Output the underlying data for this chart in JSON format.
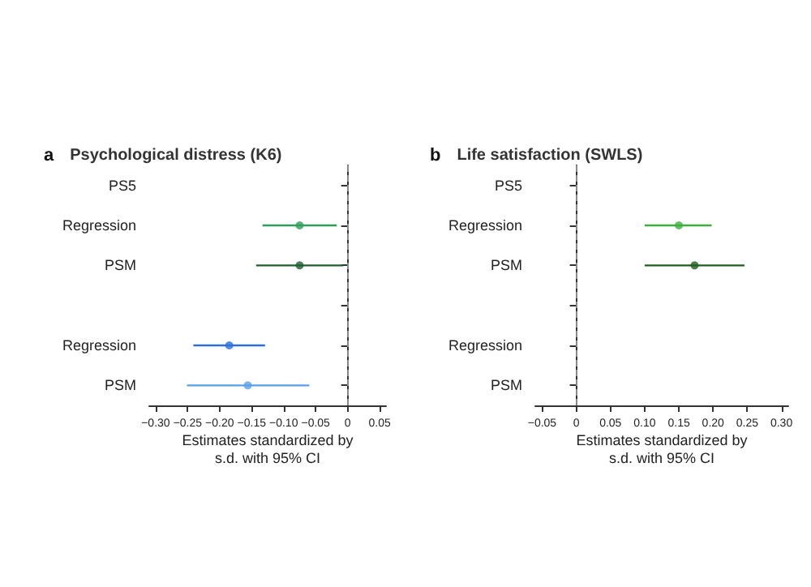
{
  "chart_data": [
    {
      "type": "scatter",
      "orientation": "horizontal",
      "title": "Psychological distress (K6)",
      "annotations": [
        "a"
      ],
      "xlabel": "Estimates standardized by\ns.d. with 95% CI",
      "categories": [
        "PS5",
        "Regression",
        "PSM",
        null,
        "Regression",
        "PSM"
      ],
      "values": [
        null,
        -0.075,
        -0.075,
        null,
        -0.185,
        -0.156
      ],
      "errors": [
        null,
        [
          -0.133,
          -0.017
        ],
        [
          -0.143,
          -0.007
        ],
        null,
        [
          -0.241,
          -0.129
        ],
        [
          -0.251,
          -0.06
        ]
      ],
      "colors": [
        null,
        "#2e9e5b",
        "#1f5f2f",
        null,
        "#2a6fdb",
        "#5aa0e8"
      ],
      "xlim": [
        -0.31,
        0.06
      ],
      "xticks": [
        {
          "value": -0.3,
          "label": "−0.30"
        },
        {
          "value": -0.25,
          "label": "−0.25"
        },
        {
          "value": -0.2,
          "label": "−0.20"
        },
        {
          "value": -0.15,
          "label": "−0.15"
        },
        {
          "value": -0.1,
          "label": "−0.10"
        },
        {
          "value": -0.05,
          "label": "−0.05"
        },
        {
          "value": 0,
          "label": "0"
        },
        {
          "value": 0.05,
          "label": "0.05"
        }
      ],
      "ref_lines": [
        {
          "axis": "x",
          "value": 0,
          "color": "#888888",
          "line_style": "dashed"
        }
      ],
      "marker": "circle",
      "grid": false
    },
    {
      "type": "scatter",
      "orientation": "horizontal",
      "title": "Life satisfaction (SWLS)",
      "annotations": [
        "b"
      ],
      "xlabel": "Estimates standardized by\ns.d. with 95% CI",
      "categories": [
        "PS5",
        "Regression",
        "PSM",
        null,
        "Regression",
        "PSM"
      ],
      "values": [
        null,
        0.15,
        0.173,
        null,
        null,
        null
      ],
      "errors": [
        null,
        [
          0.1,
          0.198
        ],
        [
          0.1,
          0.246
        ],
        null,
        null,
        null
      ],
      "colors": [
        null,
        "#3fae3f",
        "#1e5e1e",
        null,
        null,
        null
      ],
      "xlim": [
        -0.06,
        0.31
      ],
      "xticks": [
        {
          "value": -0.05,
          "label": "−0.05"
        },
        {
          "value": 0,
          "label": "0"
        },
        {
          "value": 0.05,
          "label": "0.05"
        },
        {
          "value": 0.1,
          "label": "0.10"
        },
        {
          "value": 0.15,
          "label": "0.15"
        },
        {
          "value": 0.2,
          "label": "0.20"
        },
        {
          "value": 0.25,
          "label": "0.25"
        },
        {
          "value": 0.3,
          "label": "0.30"
        }
      ],
      "ref_lines": [
        {
          "axis": "x",
          "value": 0,
          "color": "#888888",
          "line_style": "dashed"
        }
      ],
      "marker": "circle",
      "grid": false
    }
  ]
}
